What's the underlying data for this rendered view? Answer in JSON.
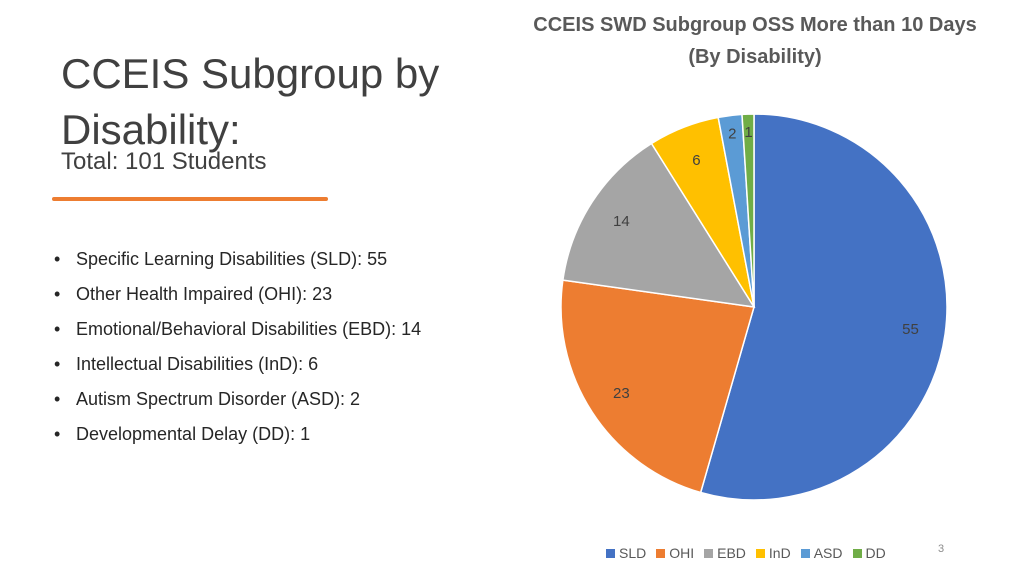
{
  "slide": {
    "title": "CCEIS Subgroup by Disability:",
    "subtitle": "Total: 101 Students",
    "bullets": [
      "Specific Learning Disabilities (SLD): 55",
      "Other Health Impaired (OHI): 23",
      "Emotional/Behavioral Disabilities (EBD): 14",
      "Intellectual Disabilities (InD): 6",
      "Autism Spectrum Disorder (ASD): 2",
      "Developmental Delay (DD): 1"
    ],
    "page_number": "3",
    "accent_color": "#ED7D31"
  },
  "chart_data": {
    "type": "pie",
    "title": "CCEIS SWD Subgroup OSS More than 10 Days (By Disability)",
    "categories": [
      "SLD",
      "OHI",
      "EBD",
      "InD",
      "ASD",
      "DD"
    ],
    "values": [
      55,
      23,
      14,
      6,
      2,
      1
    ],
    "colors": [
      "#4472C4",
      "#ED7D31",
      "#A5A5A5",
      "#FFC000",
      "#5B9BD5",
      "#70AD47"
    ],
    "legend_position": "bottom"
  }
}
